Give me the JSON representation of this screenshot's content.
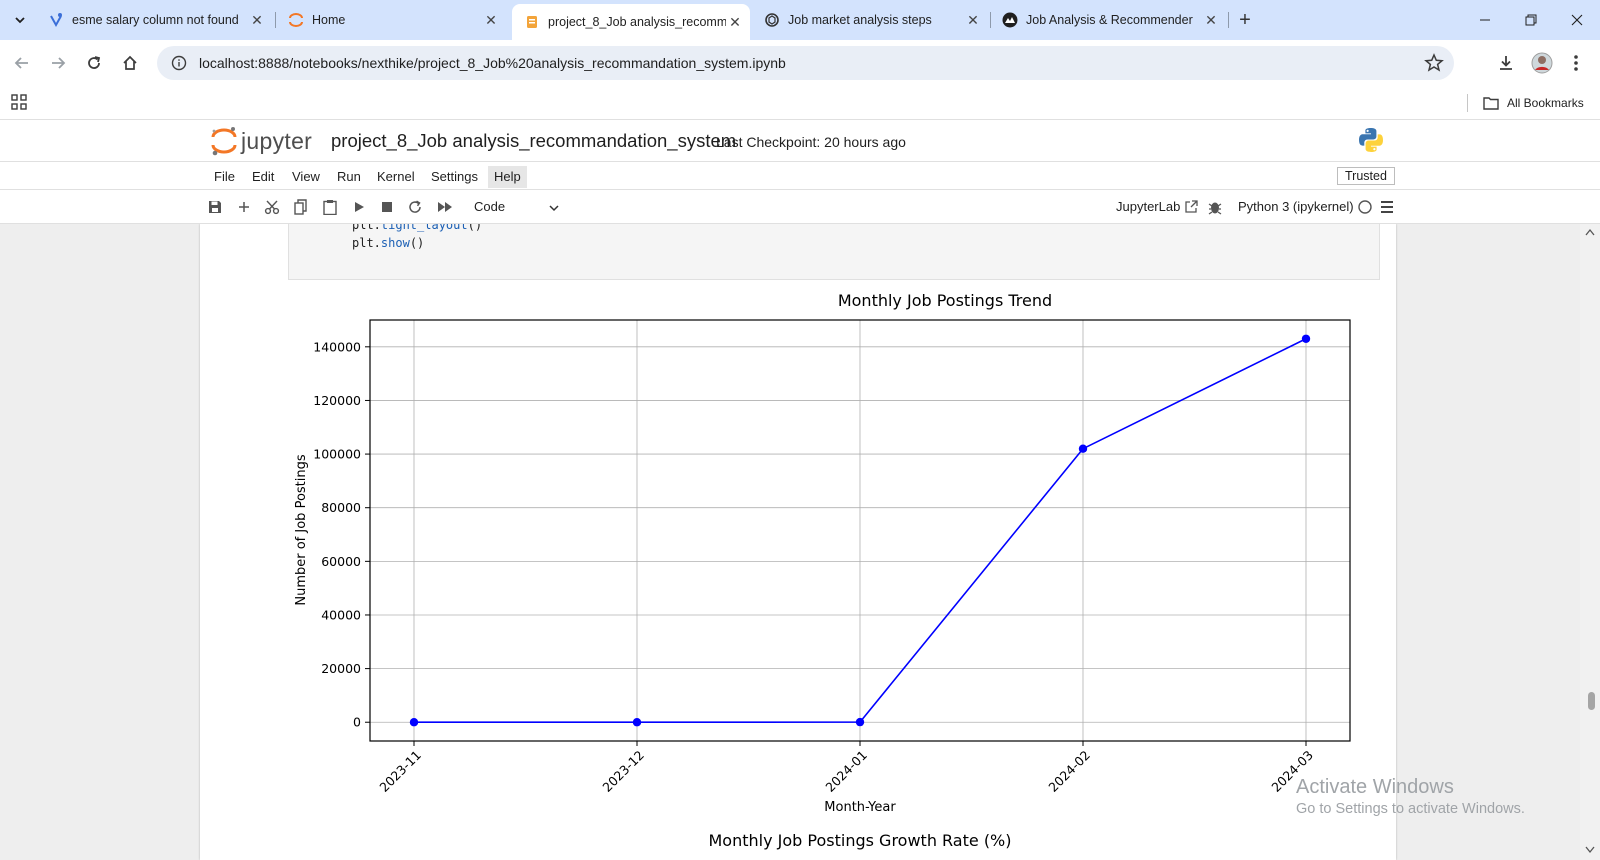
{
  "browser": {
    "tabs": [
      {
        "title": "esme salary column not found",
        "icon": "ai-sparkle-icon",
        "active": false
      },
      {
        "title": "Home",
        "icon": "jupyter-icon",
        "active": false
      },
      {
        "title": "project_8_Job analysis_recomm",
        "icon": "notebook-icon",
        "active": true
      },
      {
        "title": "Job market analysis steps",
        "icon": "chatgpt-icon",
        "active": false
      },
      {
        "title": "Job Analysis & Recommender",
        "icon": "streamlit-icon",
        "active": false
      }
    ],
    "url": "localhost:8888/notebooks/nexthike/project_8_Job%20analysis_recommandation_system.ipynb",
    "bookmarks_label": "All Bookmarks"
  },
  "jupyter": {
    "logo_text": "jupyter",
    "notebook_title": "project_8_Job analysis_recommandation_system",
    "checkpoint": "Last Checkpoint: 20 hours ago",
    "menu": [
      "File",
      "Edit",
      "View",
      "Run",
      "Kernel",
      "Settings",
      "Help"
    ],
    "trusted": "Trusted",
    "cell_type": "Code",
    "jupyterlab_link": "JupyterLab",
    "kernel": "Python 3 (ipykernel)"
  },
  "code_cell": {
    "lines": [
      {
        "obj": "plt.",
        "fn": "tight_layout",
        "rest": "()"
      },
      {
        "obj": "plt.",
        "fn": "show",
        "rest": "()"
      }
    ]
  },
  "chart_data": {
    "type": "line",
    "title": "Monthly Job Postings Trend",
    "xlabel": "Month-Year",
    "ylabel": "Number of Job Postings",
    "categories": [
      "2023-11",
      "2023-12",
      "2024-01",
      "2024-02",
      "2024-03"
    ],
    "series": [
      {
        "values": [
          0,
          0,
          50,
          102000,
          143000
        ]
      }
    ],
    "ylim": [
      -7000,
      150000
    ],
    "yticks": [
      0,
      20000,
      40000,
      60000,
      80000,
      100000,
      120000,
      140000
    ],
    "grid": true,
    "line_color": "#0000ff",
    "marker": "circle"
  },
  "next_chart_title": "Monthly Job Postings Growth Rate (%)",
  "watermark": {
    "line1": "Activate Windows",
    "line2": "Go to Settings to activate Windows."
  }
}
